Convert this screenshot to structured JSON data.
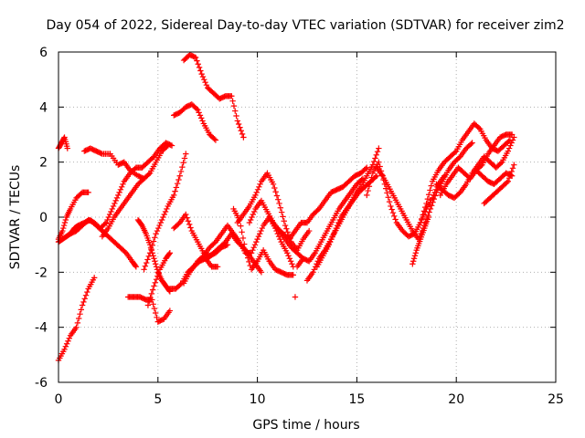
{
  "chart_data": {
    "type": "scatter",
    "title": "Day 054 of 2022, Sidereal Day-to-day VTEC variation (SDTVAR) for receiver zim2",
    "xlabel": "GPS time / hours",
    "ylabel": "SDTVAR / TECUs",
    "xlim": [
      0,
      25
    ],
    "ylim": [
      -6,
      6
    ],
    "xticks": [
      0,
      5,
      10,
      15,
      20,
      25
    ],
    "yticks": [
      -6,
      -4,
      -2,
      0,
      2,
      4,
      6
    ],
    "xtick_labels": [
      "0",
      "5",
      "10",
      "15",
      "20",
      "25"
    ],
    "ytick_labels": [
      "-6",
      "-4",
      "-2",
      "0",
      "2",
      "4",
      "6"
    ],
    "grid": true,
    "marker": "+",
    "color": "#ff0000",
    "series": [
      {
        "x": [
          0,
          0.3,
          0.6,
          0.9,
          1.2,
          1.5,
          1.8
        ],
        "y": [
          -5.2,
          -4.8,
          -4.3,
          -4.0,
          -3.2,
          -2.6,
          -2.2
        ]
      },
      {
        "x": [
          0,
          0.2,
          0.4,
          0.6,
          0.9,
          1.2,
          1.5
        ],
        "y": [
          -0.8,
          -0.5,
          0.0,
          0.3,
          0.7,
          0.9,
          0.9
        ]
      },
      {
        "x": [
          0,
          0.2,
          0.4,
          0.6,
          0.8,
          1.0,
          1.3,
          1.6,
          1.9,
          2.2,
          2.5,
          2.8,
          3.1,
          3.4,
          3.7,
          3.9
        ],
        "y": [
          -0.9,
          -0.8,
          -0.7,
          -0.6,
          -0.4,
          -0.3,
          -0.2,
          -0.1,
          -0.3,
          -0.5,
          -0.7,
          -0.9,
          -1.1,
          -1.3,
          -1.6,
          -1.8
        ]
      },
      {
        "x": [
          0,
          0.15,
          0.3,
          0.45
        ],
        "y": [
          2.5,
          2.7,
          2.9,
          2.5
        ]
      },
      {
        "x": [
          1.3,
          1.6,
          1.9,
          2.2,
          2.6,
          3.0,
          3.3,
          3.6,
          4.0,
          4.3,
          4.6,
          4.9,
          5.2,
          5.5
        ],
        "y": [
          2.4,
          2.5,
          2.4,
          2.3,
          2.3,
          1.9,
          2.0,
          1.7,
          1.5,
          1.4,
          1.6,
          2.0,
          2.4,
          2.6
        ]
      },
      {
        "x": [
          0.6,
          0.9,
          1.2,
          1.5,
          1.8,
          2.1,
          2.4,
          2.7,
          3.0,
          3.3,
          3.6,
          3.9,
          4.2,
          4.5,
          4.8,
          5.1,
          5.4,
          5.7
        ],
        "y": [
          -0.6,
          -0.5,
          -0.3,
          -0.1,
          -0.2,
          -0.4,
          -0.2,
          0.3,
          0.8,
          1.3,
          1.6,
          1.8,
          1.8,
          2.0,
          2.2,
          2.5,
          2.7,
          2.6
        ]
      },
      {
        "x": [
          2.2,
          2.5,
          2.8,
          3.1,
          3.4,
          3.7,
          4.0,
          4.3
        ],
        "y": [
          -0.7,
          -0.4,
          0.0,
          0.3,
          0.6,
          0.9,
          1.2,
          1.4
        ]
      },
      {
        "x": [
          3.5,
          3.8,
          4.1,
          4.4,
          4.7,
          5.0,
          5.3,
          5.6
        ],
        "y": [
          -2.9,
          -2.9,
          -2.9,
          -3.0,
          -3.0,
          -3.8,
          -3.7,
          -3.4
        ]
      },
      {
        "x": [
          4.0,
          4.2,
          4.4,
          4.6,
          4.8,
          5.0,
          5.2,
          5.4,
          5.6
        ],
        "y": [
          -0.1,
          -0.3,
          -0.6,
          -1.0,
          -1.5,
          -2.0,
          -2.3,
          -2.5,
          -2.7
        ]
      },
      {
        "x": [
          4.3,
          4.6,
          4.9,
          5.2,
          5.5,
          5.8,
          6.1,
          6.4
        ],
        "y": [
          -1.9,
          -1.3,
          -0.6,
          -0.1,
          0.4,
          0.8,
          1.5,
          2.3
        ]
      },
      {
        "x": [
          4.5,
          4.8,
          5.1,
          5.4,
          5.6
        ],
        "y": [
          -3.2,
          -2.5,
          -1.9,
          -1.5,
          -1.3
        ]
      },
      {
        "x": [
          5.6,
          5.9,
          6.2,
          6.5,
          6.8,
          7.1,
          7.4,
          7.7,
          8.0
        ],
        "y": [
          -2.6,
          -2.6,
          -2.4,
          -2.0,
          -1.8,
          -1.6,
          -1.5,
          -1.8,
          -1.8
        ]
      },
      {
        "x": [
          5.8,
          6.1,
          6.4,
          6.7,
          7.0,
          7.3,
          7.6,
          7.9,
          8.2,
          8.5
        ],
        "y": [
          -0.4,
          -0.2,
          0.1,
          -0.5,
          -0.9,
          -1.3,
          -1.4,
          -1.3,
          -1.1,
          -1.0
        ]
      },
      {
        "x": [
          5.8,
          6.1,
          6.4,
          6.7,
          7.0,
          7.3,
          7.6,
          7.9
        ],
        "y": [
          3.7,
          3.8,
          4.0,
          4.1,
          3.9,
          3.4,
          3.0,
          2.8
        ]
      },
      {
        "x": [
          6.3,
          6.6,
          6.9,
          7.2,
          7.5,
          7.8,
          8.1,
          8.4,
          8.7,
          9.0,
          9.3
        ],
        "y": [
          5.7,
          5.9,
          5.8,
          5.2,
          4.7,
          4.5,
          4.3,
          4.4,
          4.4,
          3.5,
          2.9
        ]
      },
      {
        "x": [
          6.3,
          6.6,
          6.9,
          7.2,
          7.5,
          7.8,
          8.1,
          8.4,
          8.7,
          9.0,
          9.3,
          9.6,
          9.9,
          10.2
        ],
        "y": [
          -2.4,
          -2.0,
          -1.7,
          -1.5,
          -1.5,
          -1.3,
          -1.1,
          -0.9,
          -0.6,
          -0.9,
          -1.1,
          -1.4,
          -1.7,
          -2.0
        ]
      },
      {
        "x": [
          7.0,
          7.3,
          7.6,
          7.9,
          8.2,
          8.5,
          8.8,
          9.1,
          9.4,
          9.7,
          10.0,
          10.3,
          10.6,
          10.9,
          11.2,
          11.5,
          11.8
        ],
        "y": [
          -1.6,
          -1.4,
          -1.1,
          -0.9,
          -0.6,
          -0.3,
          -0.6,
          -0.9,
          -1.3,
          -1.3,
          -0.8,
          -0.3,
          0.0,
          -0.4,
          -0.9,
          -1.3,
          -1.8
        ]
      },
      {
        "x": [
          8.8,
          9.1,
          9.4,
          9.7,
          10.0,
          10.3,
          10.6,
          10.9,
          11.2,
          11.5,
          11.8
        ],
        "y": [
          0.3,
          -0.1,
          -1.2,
          -1.9,
          -1.6,
          -1.2,
          -1.6,
          -1.9,
          -2.0,
          -2.1,
          -2.1
        ]
      },
      {
        "x": [
          9.0,
          9.3,
          9.6,
          9.9,
          10.2,
          10.5,
          10.8,
          11.1,
          11.4,
          11.7,
          12.0,
          12.3,
          12.6
        ],
        "y": [
          -0.2,
          0.1,
          0.4,
          0.8,
          1.3,
          1.6,
          1.2,
          0.5,
          -0.3,
          -0.9,
          -1.2,
          -0.8,
          -0.5
        ]
      },
      {
        "x": [
          9.6,
          9.9,
          10.2,
          10.5,
          10.8,
          11.1,
          11.4,
          11.7,
          12.0,
          12.3
        ],
        "y": [
          -0.2,
          0.3,
          0.6,
          0.2,
          -0.2,
          -0.5,
          -0.8,
          -1.1,
          -1.3,
          -1.5
        ]
      },
      {
        "x": [
          11.9
        ],
        "y": [
          -2.9
        ]
      },
      {
        "x": [
          11.0,
          11.3,
          11.6,
          11.9,
          12.2,
          12.5,
          12.8,
          13.1,
          13.4,
          13.7,
          14.0,
          14.3,
          14.6,
          14.9,
          15.2,
          15.5
        ],
        "y": [
          -0.4,
          -0.6,
          -0.8,
          -0.5,
          -0.2,
          -0.2,
          0.1,
          0.3,
          0.6,
          0.9,
          1.0,
          1.1,
          1.3,
          1.5,
          1.6,
          1.8
        ]
      },
      {
        "x": [
          12.0,
          12.3,
          12.6,
          12.9,
          13.2,
          13.5,
          13.8,
          14.1,
          14.4,
          14.7,
          15.0,
          15.3
        ],
        "y": [
          -1.8,
          -1.5,
          -1.6,
          -1.3,
          -0.9,
          -0.5,
          -0.1,
          0.3,
          0.6,
          0.9,
          1.2,
          1.4
        ]
      },
      {
        "x": [
          12.5,
          12.8,
          13.1,
          13.4,
          13.7,
          14.0,
          14.3,
          14.6,
          14.9,
          15.2,
          15.5,
          15.8,
          16.1
        ],
        "y": [
          -2.3,
          -2.0,
          -1.5,
          -1.2,
          -0.8,
          -0.4,
          0.0,
          0.4,
          0.8,
          1.1,
          1.5,
          1.9,
          2.5
        ]
      },
      {
        "x": [
          13.0,
          13.3,
          13.6,
          13.9,
          14.2,
          14.5,
          14.8,
          15.1,
          15.4,
          15.7,
          16.0
        ],
        "y": [
          -1.8,
          -1.4,
          -1.0,
          -0.5,
          0.0,
          0.3,
          0.6,
          0.9,
          1.1,
          1.3,
          1.5
        ]
      },
      {
        "x": [
          15.5,
          15.8,
          16.1,
          16.4,
          16.7,
          17.0,
          17.3,
          17.6,
          17.9,
          18.2,
          18.5,
          18.8,
          19.1,
          19.4
        ],
        "y": [
          0.8,
          1.6,
          2.0,
          1.2,
          0.4,
          -0.2,
          -0.5,
          -0.7,
          -0.6,
          -0.2,
          0.3,
          0.7,
          1.2,
          1.5
        ]
      },
      {
        "x": [
          16.0,
          16.3,
          16.6,
          16.9,
          17.2,
          17.5,
          17.8,
          18.1,
          18.4,
          18.7,
          19.0,
          19.3,
          19.6,
          19.9,
          20.2,
          20.5,
          20.8
        ],
        "y": [
          1.8,
          1.5,
          1.1,
          0.7,
          0.3,
          -0.1,
          -0.5,
          -0.8,
          -0.3,
          0.3,
          0.9,
          1.3,
          1.7,
          2.0,
          2.2,
          2.5,
          2.7
        ]
      },
      {
        "x": [
          17.8,
          18.0,
          18.2,
          18.4,
          18.6
        ],
        "y": [
          -1.7,
          -1.2,
          -0.8,
          -0.4,
          0.0
        ]
      },
      {
        "x": [
          18.2,
          18.5,
          18.8,
          19.1,
          19.4,
          19.7,
          20.0,
          20.3,
          20.6,
          20.9,
          21.2,
          21.5,
          21.8,
          22.1,
          22.4,
          22.7
        ],
        "y": [
          -0.2,
          0.5,
          1.3,
          1.7,
          2.0,
          2.2,
          2.4,
          2.8,
          3.1,
          3.4,
          3.2,
          2.8,
          2.5,
          2.4,
          2.6,
          2.8
        ]
      },
      {
        "x": [
          19.0,
          19.3,
          19.6,
          19.9,
          20.2,
          20.5,
          20.8,
          21.1,
          21.4,
          21.7,
          22.0,
          22.3,
          22.6,
          22.9
        ],
        "y": [
          1.2,
          1.0,
          0.8,
          0.7,
          0.9,
          1.2,
          1.6,
          1.9,
          2.2,
          2.0,
          1.8,
          2.0,
          2.4,
          2.9
        ]
      },
      {
        "x": [
          19.2,
          19.5,
          19.8,
          20.1,
          20.4,
          20.7,
          21.0,
          21.3,
          21.6,
          21.9,
          22.2,
          22.5,
          22.8
        ],
        "y": [
          0.8,
          1.2,
          1.5,
          1.8,
          1.6,
          1.4,
          1.7,
          1.5,
          1.3,
          1.2,
          1.4,
          1.6,
          1.5
        ]
      },
      {
        "x": [
          21.0,
          21.3,
          21.6,
          21.9,
          22.2,
          22.5,
          22.8
        ],
        "y": [
          1.7,
          1.9,
          2.3,
          2.6,
          2.9,
          3.0,
          3.0
        ]
      },
      {
        "x": [
          21.4,
          21.7,
          22.0,
          22.3,
          22.6,
          22.9
        ],
        "y": [
          0.5,
          0.7,
          0.9,
          1.1,
          1.3,
          1.9
        ]
      }
    ]
  }
}
